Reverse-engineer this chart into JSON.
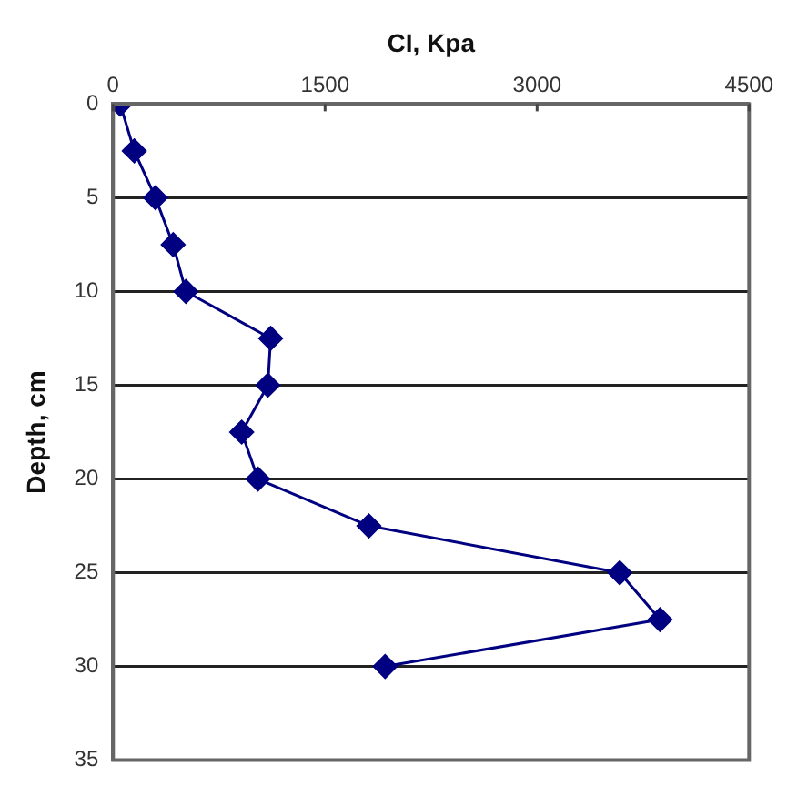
{
  "chart_data": {
    "type": "line",
    "xlabel": "CI, Kpa",
    "ylabel": "Depth, cm",
    "x": [
      50,
      150,
      300,
      425,
      515,
      1115,
      1095,
      910,
      1025,
      1810,
      3585,
      3870,
      1925
    ],
    "values": [
      0,
      2.5,
      5,
      7.5,
      10,
      12.5,
      15,
      17.5,
      20,
      22.5,
      25,
      27.5,
      30
    ],
    "color": "#000080",
    "xlim": [
      0,
      4500
    ],
    "xticks": [
      0,
      1500,
      3000,
      4500
    ],
    "ylim": [
      35,
      0
    ],
    "yticks": [
      0,
      5,
      10,
      15,
      20,
      25,
      30,
      35
    ],
    "grid": "y",
    "legend": false,
    "marker": "diamond",
    "line_style": "solid"
  }
}
